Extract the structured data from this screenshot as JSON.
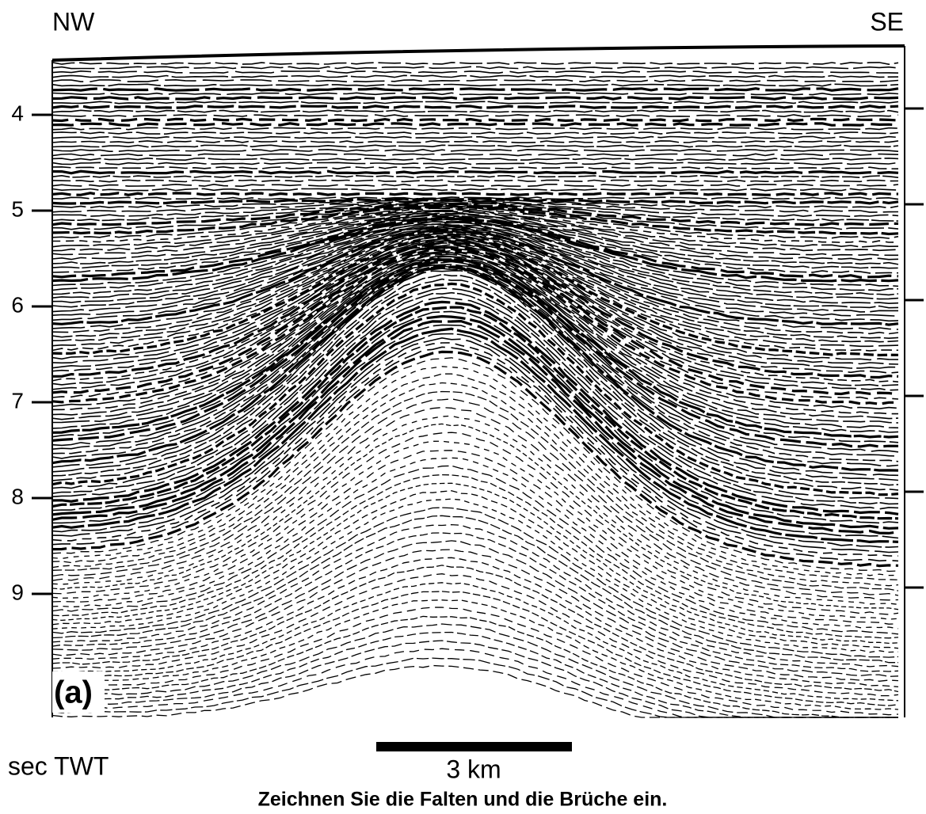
{
  "header": {
    "left": "NW",
    "right": "SE"
  },
  "axis": {
    "label": "sec TWT",
    "ticks": [
      4,
      5,
      6,
      7,
      8,
      9
    ]
  },
  "panel_label": "(a)",
  "scale_bar": {
    "label": "3 km"
  },
  "caption": "Zeichnen Sie die Falten und die Brüche ein."
}
